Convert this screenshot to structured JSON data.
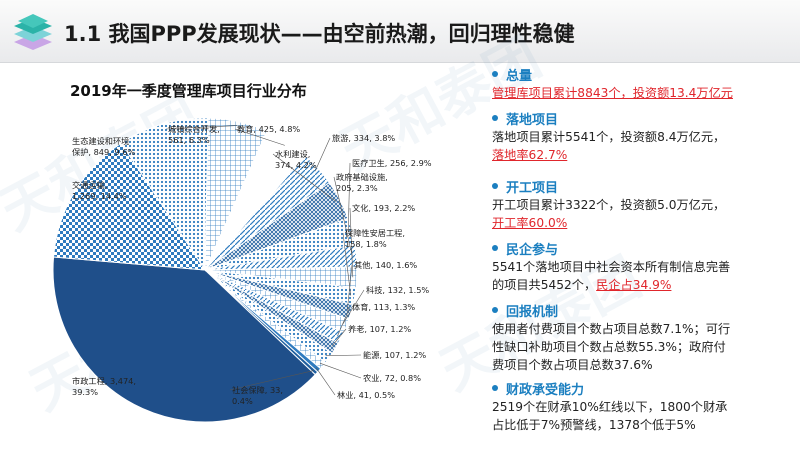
{
  "header": {
    "title": "1.1 我国PPP发展现状——由空前热潮，回归理性稳健"
  },
  "chart_data": {
    "type": "pie",
    "title": "2019年一季度管理库项目行业分布",
    "slices": [
      {
        "label": "城镇综合开发",
        "value": 561,
        "pct": "6.3%",
        "display": "城镇综合开发, 561, 6.3%",
        "color": "#f2f2f2",
        "pattern": "grid"
      },
      {
        "label": "教育",
        "value": 425,
        "pct": "4.8%",
        "display": "教育, 425, 4.8%",
        "color": "#ffffff",
        "pattern": "plain"
      },
      {
        "label": "旅游",
        "value": 334,
        "pct": "3.8%",
        "display": "旅游, 334, 3.8%",
        "color": "#2f7bbf",
        "pattern": "diag"
      },
      {
        "label": "水利建设",
        "value": 374,
        "pct": "4.2%",
        "display": "水利建设, 374, 4.2%",
        "color": "#1f5f9f",
        "pattern": "hatch"
      },
      {
        "label": "医疗卫生",
        "value": 256,
        "pct": "2.9%",
        "display": "医疗卫生, 256, 2.9%",
        "color": "#2f7bbf",
        "pattern": "dots"
      },
      {
        "label": "政府基础设施",
        "value": 205,
        "pct": "2.3%",
        "display": "政府基础设施, 205, 2.3%",
        "color": "#1f5f9f",
        "pattern": "diag"
      },
      {
        "label": "文化",
        "value": 193,
        "pct": "2.2%",
        "display": "文化, 193, 2.2%",
        "color": "#2f7bbf",
        "pattern": "grid"
      },
      {
        "label": "保障性安居工程",
        "value": 158,
        "pct": "1.8%",
        "display": "保障性安居工程, 158, 1.8%",
        "color": "#1f5f9f",
        "pattern": "dots"
      },
      {
        "label": "其他",
        "value": 140,
        "pct": "1.6%",
        "display": "其他, 140, 1.6%",
        "color": "#2f7bbf",
        "pattern": "hatch"
      },
      {
        "label": "科技",
        "value": 132,
        "pct": "1.5%",
        "display": "科技, 132, 1.5%",
        "color": "#1f5f9f",
        "pattern": "grid"
      },
      {
        "label": "体育",
        "value": 113,
        "pct": "1.3%",
        "display": "体育, 113, 1.3%",
        "color": "#2f7bbf",
        "pattern": "diag"
      },
      {
        "label": "养老",
        "value": 107,
        "pct": "1.2%",
        "display": "养老, 107, 1.2%",
        "color": "#1f5f9f",
        "pattern": "hatch"
      },
      {
        "label": "能源",
        "value": 107,
        "pct": "1.2%",
        "display": "能源, 107, 1.2%",
        "color": "#2f7bbf",
        "pattern": "dots"
      },
      {
        "label": "农业",
        "value": 72,
        "pct": "0.8%",
        "display": "农业, 72, 0.8%",
        "color": "#1f5f9f",
        "pattern": "grid"
      },
      {
        "label": "林业",
        "value": 41,
        "pct": "0.5%",
        "display": "林业, 41, 0.5%",
        "color": "#2f7bbf",
        "pattern": "plain"
      },
      {
        "label": "社会保障",
        "value": 33,
        "pct": "0.4%",
        "display": "社会保障, 33, 0.4%",
        "color": "#1f5f9f",
        "pattern": "plain"
      },
      {
        "label": "市政工程",
        "value": 3474,
        "pct": "39.3%",
        "display": "市政工程, 3,474, 39.3%",
        "color": "#1f4f8a",
        "pattern": "plain"
      },
      {
        "label": "交通运输",
        "value": 1269,
        "pct": "14.4%",
        "display": "交通运输, 1,269, 14.4%",
        "color": "#2f7bbf",
        "pattern": "checker"
      },
      {
        "label": "生态建设和环境保护",
        "value": 849,
        "pct": "9.6%",
        "display": "生态建设和环境保护, 849, 9.6%",
        "color": "#3d8fd0",
        "pattern": "dots"
      }
    ]
  },
  "sections": [
    {
      "title": "总量",
      "lines": [
        [
          {
            "t": "管理库项目累计8843个，投资额13.4万亿元",
            "hl": true
          }
        ]
      ]
    },
    {
      "title": "落地项目",
      "lines": [
        [
          {
            "t": "落地项目累计5541个，投资额8.4万亿元，",
            "hl": false
          }
        ],
        [
          {
            "t": "落地率62.7%",
            "hl": true
          }
        ]
      ]
    },
    {
      "title": "开工项目",
      "lines": [
        [
          {
            "t": "开工项目累计3322个，投资额5.0万亿元，",
            "hl": false
          }
        ],
        [
          {
            "t": "开工率60.0%",
            "hl": true
          }
        ]
      ]
    },
    {
      "title": "民企参与",
      "lines": [
        [
          {
            "t": "5541个落地项目中社会资本所有制信息完善",
            "hl": false
          }
        ],
        [
          {
            "t": "的项目共5452个，",
            "hl": false
          },
          {
            "t": "民企占34.9%",
            "hl": true
          }
        ]
      ]
    },
    {
      "title": "回报机制",
      "lines": [
        [
          {
            "t": "使用者付费项目个数占项目总数7.1%；可行",
            "hl": false
          }
        ],
        [
          {
            "t": "性缺口补助项目个数占总数55.3%；政府付",
            "hl": false
          }
        ],
        [
          {
            "t": "费项目个数占项目总数37.6%",
            "hl": false
          }
        ]
      ]
    },
    {
      "title": "财政承受能力",
      "lines": [
        [
          {
            "t": "2519个在财承10%红线以下，1800个财承",
            "hl": false
          }
        ],
        [
          {
            "t": "占比低于7%预警线，1378个低于5%",
            "hl": false
          }
        ]
      ]
    }
  ],
  "watermark": "天和泰团",
  "colors": {
    "accent": "#1b7fc0",
    "highlight": "#e0262c",
    "pie_dark": "#1f4f8a"
  }
}
